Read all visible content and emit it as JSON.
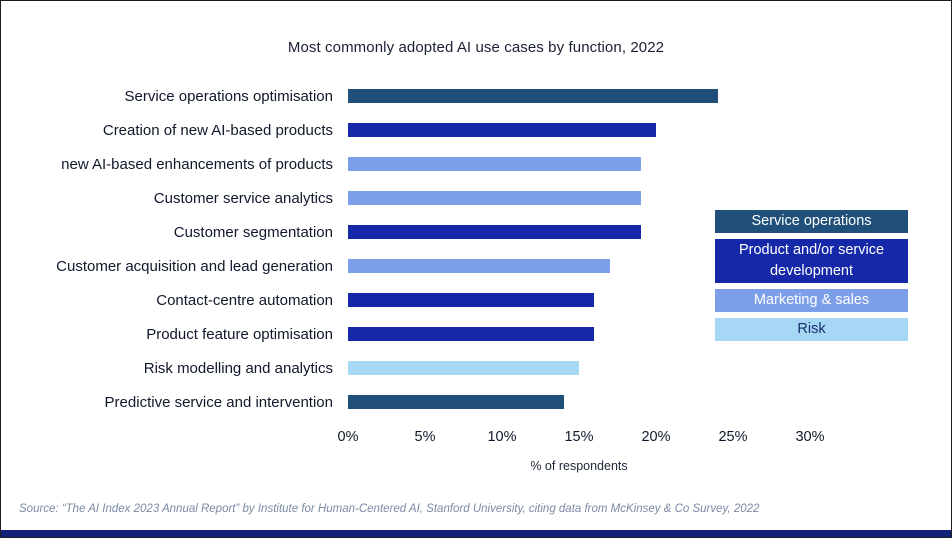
{
  "title": "Most commonly adopted AI use cases by function, 2022",
  "chart_data": {
    "type": "bar",
    "orientation": "horizontal",
    "title": "Most commonly adopted AI use cases by function, 2022",
    "xlabel": "% of respondents",
    "ylabel": "",
    "xlim": [
      0,
      30
    ],
    "grid": false,
    "x_ticks": [
      {
        "value": 0,
        "label": "0%"
      },
      {
        "value": 5,
        "label": "5%"
      },
      {
        "value": 10,
        "label": "10%"
      },
      {
        "value": 15,
        "label": "15%"
      },
      {
        "value": 20,
        "label": "20%"
      },
      {
        "value": 25,
        "label": "25%"
      },
      {
        "value": 30,
        "label": "30%"
      }
    ],
    "bars": [
      {
        "label": "Service operations optimisation",
        "value": 24,
        "series": "Service operations"
      },
      {
        "label": "Creation of new AI-based products",
        "value": 20,
        "series": "Product and/or service development"
      },
      {
        "label": "new AI-based enhancements of products",
        "value": 19,
        "series": "Marketing & sales"
      },
      {
        "label": "Customer service analytics",
        "value": 19,
        "series": "Marketing & sales"
      },
      {
        "label": "Customer segmentation",
        "value": 19,
        "series": "Product and/or service development"
      },
      {
        "label": "Customer acquisition and lead generation",
        "value": 17,
        "series": "Marketing & sales"
      },
      {
        "label": "Contact-centre automation",
        "value": 16,
        "series": "Product and/or service development"
      },
      {
        "label": "Product feature optimisation",
        "value": 16,
        "series": "Product and/or service development"
      },
      {
        "label": "Risk modelling and analytics",
        "value": 15,
        "series": "Risk"
      },
      {
        "label": "Predictive service and intervention",
        "value": 14,
        "series": "Service operations"
      }
    ],
    "legend": {
      "position": "right",
      "items": [
        {
          "label": "Service operations",
          "color": "#20507A",
          "text_color": "#FFFFFF"
        },
        {
          "label": "Product and/or service development",
          "color": "#1528A8",
          "text_color": "#FFFFFF"
        },
        {
          "label": "Marketing & sales",
          "color": "#7D9EE8",
          "text_color": "#FFFFFF"
        },
        {
          "label": "Risk",
          "color": "#A6D7F4",
          "text_color": "#17306B"
        }
      ]
    }
  },
  "series_colors": {
    "Service operations": "#20507A",
    "Product and/or service development": "#1528A8",
    "Marketing & sales": "#7D9EE8",
    "Risk": "#A6D7F4"
  },
  "source": "Source: “The AI Index 2023 Annual Report” by Institute for Human-Centered AI, Stanford University, citing data from McKinsey & Co Survey, 2022",
  "footer_bar_color": "#13217C"
}
